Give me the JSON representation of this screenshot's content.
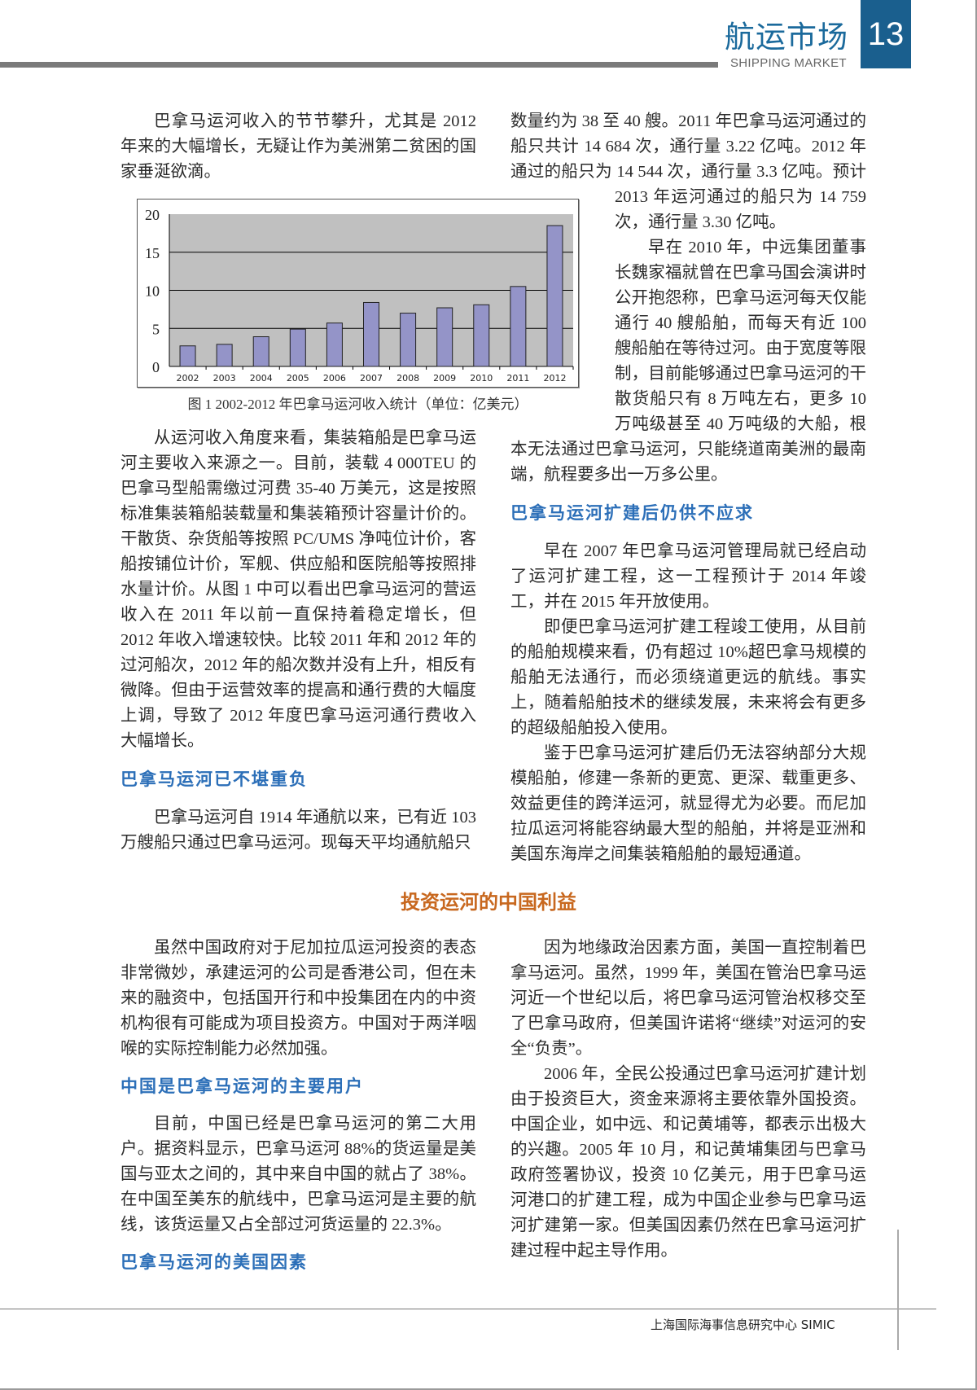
{
  "header": {
    "section_title": "航运市场",
    "section_subtitle": "SHIPPING MARKET",
    "page_number": "13",
    "accent_color": "#1a5f8e"
  },
  "left_top": {
    "p1": "巴拿马运河收入的节节攀升，尤其是 2012 年来的大幅增长，无疑让作为美洲第二贫困的国家垂涎欲滴。",
    "p2": "从运河收入角度来看，集装箱船是巴拿马运河主要收入来源之一。目前，装载 4 000TEU 的巴拿马型船需缴过河费 35-40 万美元，这是按照标准集装箱船装载量和集装箱预计容量计价的。干散货、杂货船等按照 PC/UMS 净吨位计价，客船按铺位计价，军舰、供应船和医院船等按照排水量计价。从图 1 中可以看出巴拿马运河的营运收入在 2011 年以前一直保持着稳定增长，但 2012 年收入增速较快。比较 2011 年和 2012 年的过河船次，2012 年的船次数并没有上升，相反有微降。但由于运营效率的提高和通行费的大幅度上调，导致了 2012 年度巴拿马运河通行费收入大幅增长。",
    "h1": "巴拿马运河已不堪重负",
    "p3": "巴拿马运河自 1914 年通航以来，已有近 103 万艘船只通过巴拿马运河。现每天平均通航船只"
  },
  "right_top": {
    "p1": "数量约为 38 至 40 艘。2011 年巴拿马运河通过的船只共计 14 684 次，通行量 3.22 亿吨。2012 年通过的船只为 14 544 次，通行量 3.3 亿吨。预计 2013 年运河通过的船只为 14 759 次，通行量 3.30 亿吨。",
    "p2": "早在 2010 年，中远集团董事长魏家福就曾在巴拿马国会演讲时公开抱怨称，巴拿马运河每天仅能通行 40 艘船舶，而每天有近 100 艘船舶在等待过河。由于宽度等限制，目前能够通过巴拿马运河的干散货船只有 8 万吨左右，更多 10 万吨级甚至 40 万吨级的大船，根本无法通过巴拿马运河，只能绕道南美洲的最南端，航程要多出一万多公里。",
    "h1": "巴拿马运河扩建后仍供不应求",
    "p3": "早在 2007 年巴拿马运河管理局就已经启动了运河扩建工程，这一工程预计于 2014 年竣工，并在 2015 年开放使用。",
    "p4": "即便巴拿马运河扩建工程竣工使用，从目前的船舶规模来看，仍有超过 10%超巴拿马规模的船舶无法通行，而必须绕道更远的航线。事实上，随着船舶技术的继续发展，未来将会有更多的超级船舶投入使用。",
    "p5": "鉴于巴拿马运河扩建后仍无法容纳部分大规模船舶，修建一条新的更宽、更深、载重更多、效益更佳的跨洋运河，就显得尤为必要。而尼加拉瓜运河将能容纳最大型的船舶，并将是亚洲和美国东海岸之间集装箱船舶的最短通道。"
  },
  "section_heading": "投资运河的中国利益",
  "left_bottom": {
    "p1": "虽然中国政府对于尼加拉瓜运河投资的表态非常微妙，承建运河的公司是香港公司，但在未来的融资中，包括国开行和中投集团在内的中资机构很有可能成为项目投资方。中国对于两洋咽喉的实际控制能力必然加强。",
    "h1": "中国是巴拿马运河的主要用户",
    "p2": "目前，中国已经是巴拿马运河的第二大用户。据资料显示，巴拿马运河 88%的货运量是美国与亚太之间的，其中来自中国的就占了 38%。在中国至美东的航线中，巴拿马运河是主要的航线，该货运量又占全部过河货运量的 22.3%。",
    "h2": "巴拿马运河的美国因素"
  },
  "right_bottom": {
    "p1": "因为地缘政治因素方面，美国一直控制着巴拿马运河。虽然，1999 年，美国在管治巴拿马运河近一个世纪以后，将巴拿马运河管治权移交至了巴拿马政府，但美国许诺将“继续”对运河的安全“负责”。",
    "p2": "2006 年，全民公投通过巴拿马运河扩建计划由于投资巨大，资金来源将主要依靠外国投资。中国企业，如中远、和记黄埔等，都表示出极大的兴趣。2005 年 10 月，和记黄埔集团与巴拿马政府签署协议，投资 10 亿美元，用于巴拿马运河港口的扩建工程，成为中国企业参与巴拿马运河扩建第一家。但美国因素仍然在巴拿马运河扩建过程中起主导作用。"
  },
  "footer": {
    "org": "上海国际海事信息研究中心  SIMIC"
  },
  "chart_data": {
    "type": "bar",
    "title": "",
    "caption": "图 1  2002-2012 年巴拿马运河收入统计（单位：亿美元）",
    "categories": [
      "2002",
      "2003",
      "2004",
      "2005",
      "2006",
      "2007",
      "2008",
      "2009",
      "2010",
      "2011",
      "2012"
    ],
    "values": [
      2.7,
      2.9,
      3.9,
      4.9,
      5.7,
      8.4,
      7.0,
      7.7,
      8.1,
      10.5,
      18.5
    ],
    "yticks": [
      "0",
      "5",
      "10",
      "15",
      "20"
    ],
    "ylim": [
      0,
      20
    ],
    "grid": true,
    "bar_color": "#9494c8",
    "plot_bg": "#c0c0c0"
  }
}
